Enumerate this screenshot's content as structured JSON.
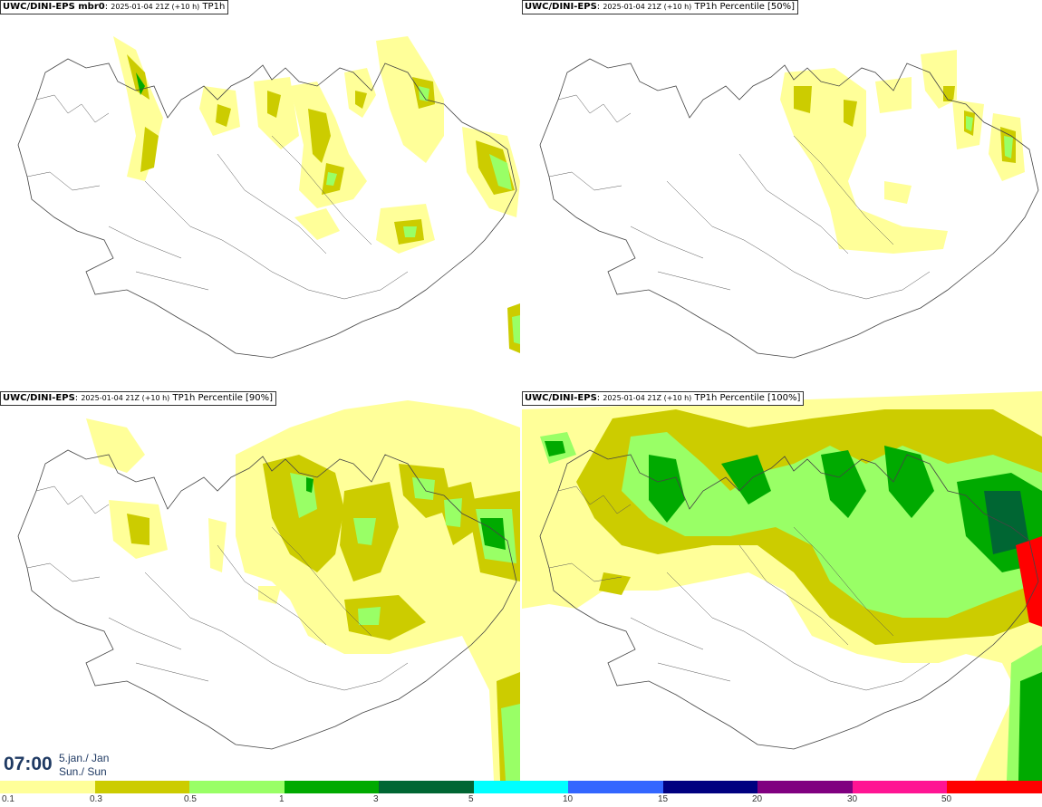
{
  "panels": [
    {
      "model": "UWC/DINI-EPS mbr0",
      "run": "2025-01-04 21Z (+10 h)",
      "field": "TP1h"
    },
    {
      "model": "UWC/DINI-EPS",
      "run": "2025-01-04 21Z (+10 h)",
      "field": "TP1h Percentile [50%]"
    },
    {
      "model": "UWC/DINI-EPS",
      "run": "2025-01-04 21Z (+10 h)",
      "field": "TP1h Percentile [90%]"
    },
    {
      "model": "UWC/DINI-EPS",
      "run": "2025-01-04 21Z (+10 h)",
      "field": "TP1h Percentile [100%]"
    }
  ],
  "valid_time": {
    "clock": "07:00",
    "date_line1": "5.jan./ Jan",
    "date_line2": "Sun./ Sun"
  },
  "legend": {
    "colors": [
      "#ffff99",
      "#cccc00",
      "#99ff66",
      "#00aa00",
      "#006633",
      "#00ffff",
      "#3366ff",
      "#000080",
      "#800080",
      "#ff1493",
      "#ff0000"
    ],
    "ticks": [
      "0.1",
      "0.3",
      "0.5",
      "1",
      "3",
      "5",
      "10",
      "15",
      "20",
      "30",
      "50"
    ]
  },
  "colors": {
    "light_yellow": "#ffff99",
    "olive": "#cccc00",
    "light_green": "#99ff66",
    "green": "#00aa00",
    "dark_green": "#006633",
    "title_blue": "#1f3a63"
  }
}
